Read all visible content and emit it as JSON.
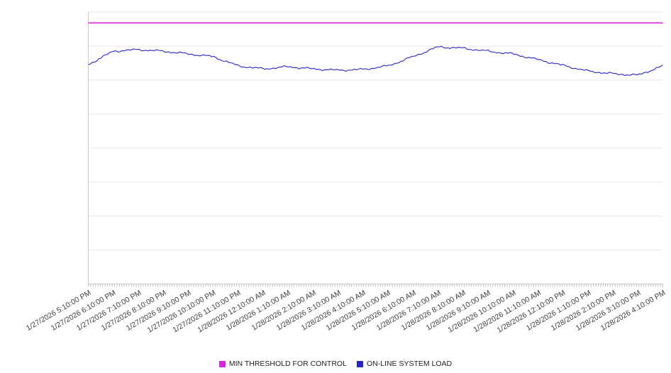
{
  "chart_data": {
    "type": "line",
    "title": "",
    "xlabel": "",
    "ylabel": "",
    "ylim": [
      0,
      100
    ],
    "grid": "horizontal",
    "legend_position": "bottom",
    "y_tick_labels_visible": false,
    "categories": [
      "1/27/2026 5:10:00 PM",
      "1/27/2026 6:10:00 PM",
      "1/27/2026 7:10:00 PM",
      "1/27/2026 8:10:00 PM",
      "1/27/2026 9:10:00 PM",
      "1/27/2026 10:10:00 PM",
      "1/27/2026 11:10:00 PM",
      "1/28/2026 12:10:00 AM",
      "1/28/2026 1:10:00 AM",
      "1/28/2026 2:10:00 AM",
      "1/28/2026 3:10:00 AM",
      "1/28/2026 4:10:00 AM",
      "1/28/2026 5:10:00 AM",
      "1/28/2026 6:10:00 AM",
      "1/28/2026 7:10:00 AM",
      "1/28/2026 8:10:00 AM",
      "1/28/2026 9:10:00 AM",
      "1/28/2026 10:10:00 AM",
      "1/28/2026 11:10:00 AM",
      "1/28/2026 12:10:00 PM",
      "1/28/2026 1:10:00 PM",
      "1/28/2026 2:10:00 PM",
      "1/28/2026 3:10:00 PM",
      "1/28/2026 4:10:00 PM"
    ],
    "series": [
      {
        "name": "MIN THRESHOLD FOR CONTROL",
        "type": "threshold",
        "color": "#e020e0",
        "constant_value": 96
      },
      {
        "name": "ON-LINE SYSTEM LOAD",
        "type": "line",
        "color": "#2525cc",
        "values": [
          80.7,
          85.6,
          86.2,
          85.6,
          84.6,
          83.6,
          80.2,
          79.1,
          79.9,
          79.1,
          78.6,
          78.9,
          80.2,
          83.6,
          87.2,
          86.7,
          85.6,
          84.6,
          82.5,
          80.4,
          78.3,
          77.3,
          76.8,
          80.2
        ]
      }
    ]
  },
  "legend": {
    "items": [
      {
        "label": "MIN THRESHOLD FOR CONTROL",
        "color": "#e020e0"
      },
      {
        "label": "ON-LINE SYSTEM LOAD",
        "color": "#2525cc"
      }
    ]
  }
}
